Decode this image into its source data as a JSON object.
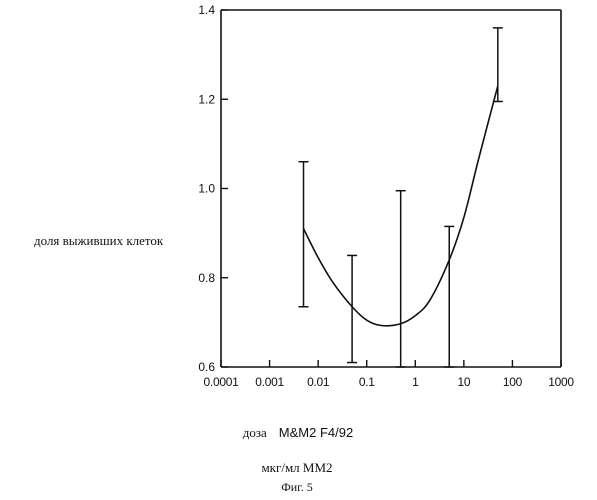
{
  "chart_data": {
    "type": "line",
    "title": "",
    "ylabel": "доля выживших клеток",
    "xlabel_prefix": "доза",
    "xlabel_name": "M&M2 F4/92",
    "xlabel_units": "мкг/мл MM2",
    "caption": "Фиг. 5",
    "x_scale": "log",
    "xlim": [
      0.0001,
      1000
    ],
    "ylim": [
      0.6,
      1.4
    ],
    "x_ticks": [
      0.0001,
      0.001,
      0.01,
      0.1,
      1,
      10,
      100,
      1000
    ],
    "x_tick_labels": [
      "0.0001",
      "0.001",
      "0.01",
      "0.1",
      "1",
      "10",
      "100",
      "1000"
    ],
    "y_ticks": [
      0.6,
      0.8,
      1.0,
      1.2,
      1.4
    ],
    "y_tick_labels": [
      "0.6",
      "0.8",
      "1.0",
      "1.2",
      "1.4"
    ],
    "grid": false,
    "points": [
      {
        "x": 0.005,
        "y": 0.91,
        "low": 0.735,
        "high": 1.06
      },
      {
        "x": 0.05,
        "y": 0.72,
        "low": 0.61,
        "high": 0.85
      },
      {
        "x": 0.5,
        "y": 0.695,
        "low": 0.6,
        "high": 0.995
      },
      {
        "x": 5,
        "y": 0.88,
        "low": 0.6,
        "high": 0.915
      },
      {
        "x": 50,
        "y": 1.23,
        "low": 1.195,
        "high": 1.36
      }
    ],
    "curve": [
      [
        0.005,
        0.91
      ],
      [
        0.01,
        0.845
      ],
      [
        0.02,
        0.79
      ],
      [
        0.05,
        0.735
      ],
      [
        0.1,
        0.705
      ],
      [
        0.2,
        0.693
      ],
      [
        0.5,
        0.697
      ],
      [
        1,
        0.715
      ],
      [
        2,
        0.75
      ],
      [
        5,
        0.84
      ],
      [
        10,
        0.935
      ],
      [
        20,
        1.065
      ],
      [
        50,
        1.23
      ]
    ],
    "line_color": "#111111"
  }
}
